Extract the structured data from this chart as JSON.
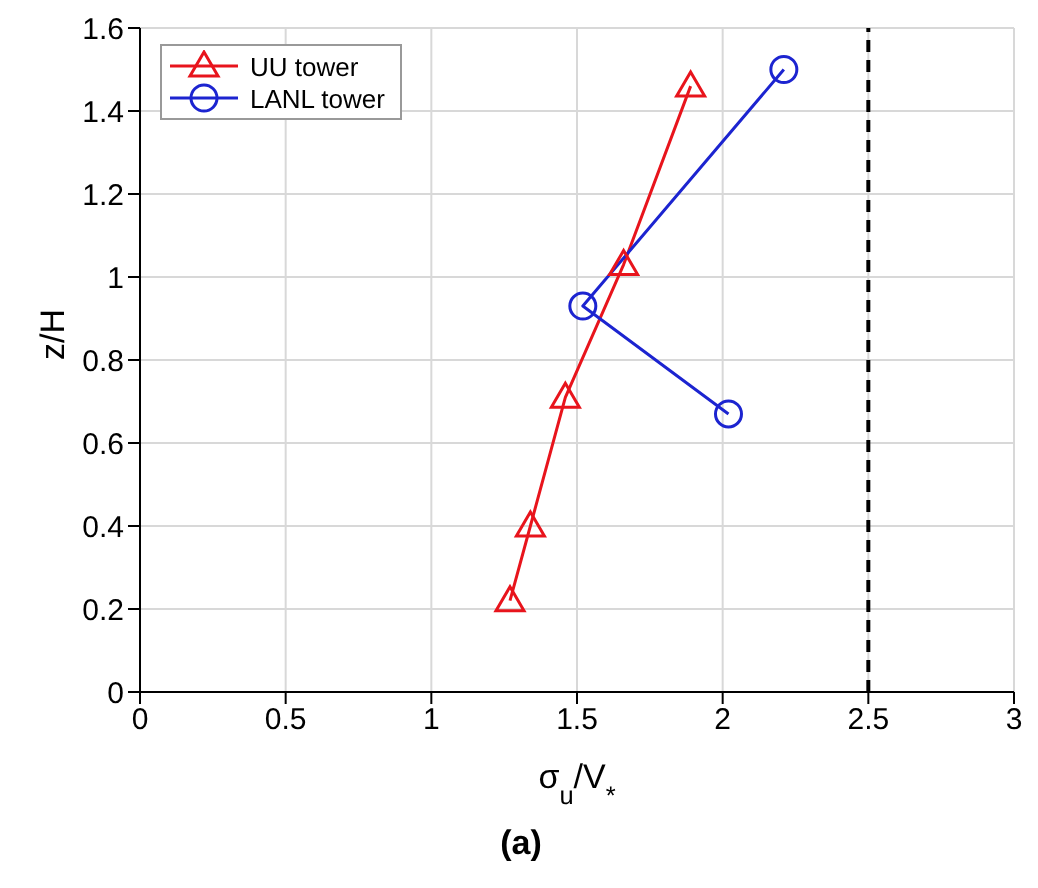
{
  "chart_data": {
    "type": "line",
    "xlabel": "σ$_{u}$/V$_{*}$",
    "ylabel": "z/H",
    "annotations": [
      "(a)"
    ],
    "xlim": [
      0,
      3
    ],
    "xticks": [
      0,
      0.5,
      1,
      1.5,
      2,
      2.5,
      3
    ],
    "ylim": [
      0,
      1.6
    ],
    "yticks": [
      0,
      0.2,
      0.4,
      0.6,
      0.8,
      1,
      1.2,
      1.4,
      1.6
    ],
    "grid": true,
    "legend": "top left",
    "line_style": "solid",
    "ref_lines": [
      {
        "axis": "x",
        "value": 2.5,
        "color": "#000000",
        "line_style": "dashed"
      }
    ],
    "series": [
      {
        "name": "UU tower",
        "color": "#e8141c",
        "marker": "triangle",
        "x": [
          1.27,
          1.34,
          1.46,
          1.66,
          1.89
        ],
        "values": [
          0.22,
          0.4,
          0.71,
          1.03,
          1.46
        ]
      },
      {
        "name": "LANL tower",
        "color": "#1c24d0",
        "marker": "circle",
        "x": [
          2.21,
          1.52,
          2.02
        ],
        "values": [
          1.5,
          0.93,
          0.67
        ]
      }
    ]
  }
}
